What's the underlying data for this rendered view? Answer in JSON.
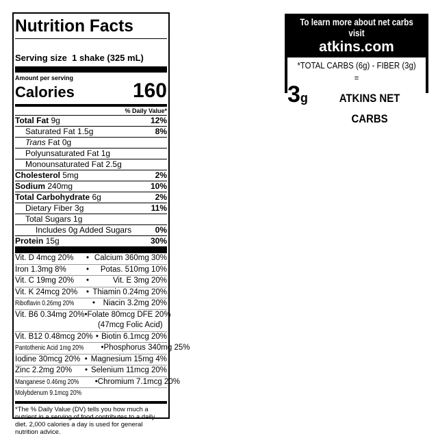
{
  "label": {
    "title": "Nutrition Facts",
    "serving_label": "Serving size",
    "serving_value": "1 shake (325 mL)",
    "amount_per_serving": "Amount per serving",
    "calories_label": "Calories",
    "calories_value": "160",
    "dv_header": "% Daily Value*",
    "nutrients": [
      {
        "name": "Total Fat",
        "amount": "9g",
        "dv": "12%",
        "bold": true,
        "indent": 0
      },
      {
        "name": "Saturated Fat 1.5g",
        "amount": "",
        "dv": "8%",
        "bold": false,
        "indent": 1
      },
      {
        "name": "Trans",
        "amount": "Fat 0g",
        "dv": "",
        "bold": false,
        "indent": 1,
        "italic": true
      },
      {
        "name": "Polyunsaturated Fat 1g",
        "amount": "",
        "dv": "",
        "bold": false,
        "indent": 1
      },
      {
        "name": "Monounsaturated Fat 2.5g",
        "amount": "",
        "dv": "",
        "bold": false,
        "indent": 1
      },
      {
        "name": "Cholesterol",
        "amount": "5mg",
        "dv": "2%",
        "bold": true,
        "indent": 0
      },
      {
        "name": "Sodium",
        "amount": "240mg",
        "dv": "10%",
        "bold": true,
        "indent": 0
      },
      {
        "name": "Total Carbohydrate",
        "amount": "6g",
        "dv": "2%",
        "bold": true,
        "indent": 0
      },
      {
        "name": "Dietary Fiber 3g",
        "amount": "",
        "dv": "11%",
        "bold": false,
        "indent": 1
      },
      {
        "name": "Total Sugars 1g",
        "amount": "",
        "dv": "",
        "bold": false,
        "indent": 1
      },
      {
        "name": "Includes 0g Added Sugars",
        "amount": "",
        "dv": "0%",
        "bold": false,
        "indent": 2
      },
      {
        "name": "Protein",
        "amount": "15g",
        "dv": "30%",
        "bold": true,
        "indent": 0
      }
    ],
    "vitamins": [
      {
        "left": "Vit. D 4mcg 20%",
        "right": "Calcium 360mg 30%"
      },
      {
        "left": "Iron 1.3mg 8%",
        "right": "Potas. 510mg 10%"
      },
      {
        "left": "Vit. C 19mg 20%",
        "right": "Vit. E 3mg 20%"
      },
      {
        "left": "Vit. K 24mcg 20%",
        "right": "Thiamin 0.24mg 20%"
      },
      {
        "left": "Riboflavin 0.26mg 20%",
        "right": "Niacin 3.2mg 20%",
        "cond": true
      },
      {
        "left": "Vit. B6 0.34mg 20%",
        "right": "Folate 80mcg DFE 20%",
        "right2": "(47mcg Folic Acid)"
      },
      {
        "left": "Vit. B12 0.48mcg 20%",
        "right": "Biotin 6.1mcg 20%"
      },
      {
        "left": "Pantothenic Acid 1mg 20%",
        "right": "Phosphorus 340mg 25%",
        "cond": true
      },
      {
        "left": "Iodine 30mcg 20%",
        "right": "Magnesium 15mg 4%"
      },
      {
        "left": "Zinc 2.2mg 20%",
        "right": "Selenium 11mcg 20%"
      },
      {
        "left": "Manganese 0.46mg 20%",
        "right": "Chromium 7.1mcg 20%",
        "cond": true
      },
      {
        "left": "Molybdenum 9.1mcg 20%",
        "right": "",
        "cond": true,
        "nodot": true
      }
    ],
    "separator": "•",
    "footnote": "*The % Daily Value (DV) tells you how much a nutrient in a serving of food contributes to a daily diet. 2,000 calories a day is used for general nutrition advice."
  },
  "net_carbs": {
    "line1": "To learn more about net carbs visit",
    "website": "atkins.com",
    "formula": "*TOTAL CARBS (6g) - FIBER (3g) =",
    "value": "3",
    "unit": "g",
    "label": "ATKINS NET CARBS"
  }
}
